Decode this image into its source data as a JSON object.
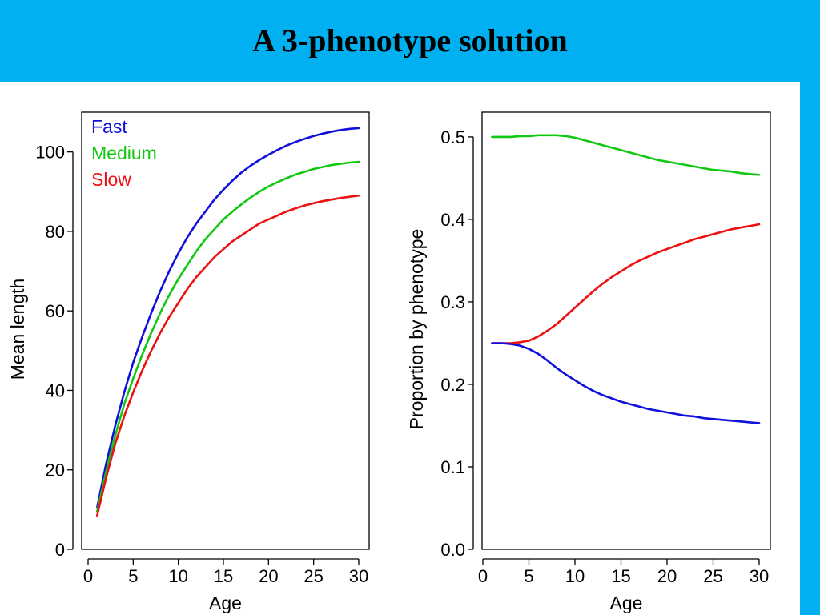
{
  "slide": {
    "title": "A 3-phenotype solution"
  },
  "colors": {
    "header": "#00b0f0",
    "fast": "#1010dd",
    "medium": "#10c810",
    "slow": "#ee1010"
  },
  "chart_data": [
    {
      "type": "line",
      "xlabel": "Age",
      "ylabel": "Mean length",
      "xlim": [
        0,
        30
      ],
      "ylim": [
        0,
        110
      ],
      "xticks": [
        0,
        5,
        10,
        15,
        20,
        25,
        30
      ],
      "yticks": [
        0,
        20,
        40,
        60,
        80,
        100
      ],
      "ytick_labels": [
        "0",
        "20",
        "40",
        "60",
        "80",
        "100"
      ],
      "legend": {
        "position": "top-left",
        "entries": [
          "Fast",
          "Medium",
          "Slow"
        ]
      },
      "grid": false,
      "x": [
        1,
        2,
        3,
        4,
        5,
        6,
        7,
        8,
        9,
        10,
        11,
        12,
        13,
        14,
        15,
        16,
        17,
        18,
        19,
        20,
        21,
        22,
        23,
        24,
        25,
        26,
        27,
        28,
        29,
        30
      ],
      "series": [
        {
          "name": "Fast",
          "color": "#1010dd",
          "values": [
            10.5,
            21.5,
            31.0,
            39.5,
            47.0,
            53.5,
            59.5,
            65.0,
            70.0,
            74.5,
            78.5,
            82.0,
            85.0,
            88.0,
            90.5,
            92.8,
            94.8,
            96.5,
            98.0,
            99.3,
            100.5,
            101.6,
            102.5,
            103.3,
            104.0,
            104.6,
            105.1,
            105.5,
            105.8,
            106.0
          ]
        },
        {
          "name": "Medium",
          "color": "#10c810",
          "values": [
            9.5,
            19.5,
            28.5,
            36.5,
            43.0,
            49.0,
            54.5,
            59.5,
            64.0,
            68.0,
            71.5,
            75.0,
            78.0,
            80.5,
            83.0,
            85.0,
            86.8,
            88.5,
            90.0,
            91.3,
            92.4,
            93.4,
            94.3,
            95.0,
            95.7,
            96.2,
            96.7,
            97.0,
            97.3,
            97.5
          ]
        },
        {
          "name": "Slow",
          "color": "#ee1010",
          "values": [
            8.5,
            18.0,
            26.5,
            33.5,
            39.5,
            45.0,
            50.0,
            54.5,
            58.5,
            62.0,
            65.5,
            68.5,
            71.0,
            73.5,
            75.5,
            77.5,
            79.0,
            80.5,
            82.0,
            83.0,
            84.0,
            85.0,
            85.8,
            86.5,
            87.1,
            87.6,
            88.0,
            88.4,
            88.7,
            89.0
          ]
        }
      ]
    },
    {
      "type": "line",
      "xlabel": "Age",
      "ylabel": "Proportion by phenotype",
      "xlim": [
        0,
        30
      ],
      "ylim": [
        0,
        0.53
      ],
      "xticks": [
        0,
        5,
        10,
        15,
        20,
        25,
        30
      ],
      "yticks": [
        0,
        0.1,
        0.2,
        0.3,
        0.4,
        0.5
      ],
      "ytick_labels": [
        "0.0",
        "0.1",
        "0.2",
        "0.3",
        "0.4",
        "0.5"
      ],
      "grid": false,
      "x": [
        1,
        2,
        3,
        4,
        5,
        6,
        7,
        8,
        9,
        10,
        11,
        12,
        13,
        14,
        15,
        16,
        17,
        18,
        19,
        20,
        21,
        22,
        23,
        24,
        25,
        26,
        27,
        28,
        29,
        30
      ],
      "series": [
        {
          "color": "#10c810",
          "values": [
            0.5,
            0.5,
            0.5,
            0.501,
            0.501,
            0.502,
            0.502,
            0.502,
            0.501,
            0.499,
            0.496,
            0.493,
            0.49,
            0.487,
            0.484,
            0.481,
            0.478,
            0.475,
            0.472,
            0.47,
            0.468,
            0.466,
            0.464,
            0.462,
            0.46,
            0.459,
            0.458,
            0.456,
            0.455,
            0.454
          ]
        },
        {
          "color": "#ee1010",
          "values": [
            0.25,
            0.25,
            0.25,
            0.251,
            0.253,
            0.258,
            0.265,
            0.273,
            0.283,
            0.293,
            0.303,
            0.313,
            0.322,
            0.33,
            0.337,
            0.344,
            0.35,
            0.355,
            0.36,
            0.364,
            0.368,
            0.372,
            0.376,
            0.379,
            0.382,
            0.385,
            0.388,
            0.39,
            0.392,
            0.394
          ]
        },
        {
          "color": "#1010dd",
          "values": [
            0.25,
            0.25,
            0.249,
            0.247,
            0.243,
            0.237,
            0.229,
            0.22,
            0.212,
            0.205,
            0.198,
            0.192,
            0.187,
            0.183,
            0.179,
            0.176,
            0.173,
            0.17,
            0.168,
            0.166,
            0.164,
            0.162,
            0.161,
            0.159,
            0.158,
            0.157,
            0.156,
            0.155,
            0.154,
            0.153
          ]
        }
      ]
    }
  ]
}
